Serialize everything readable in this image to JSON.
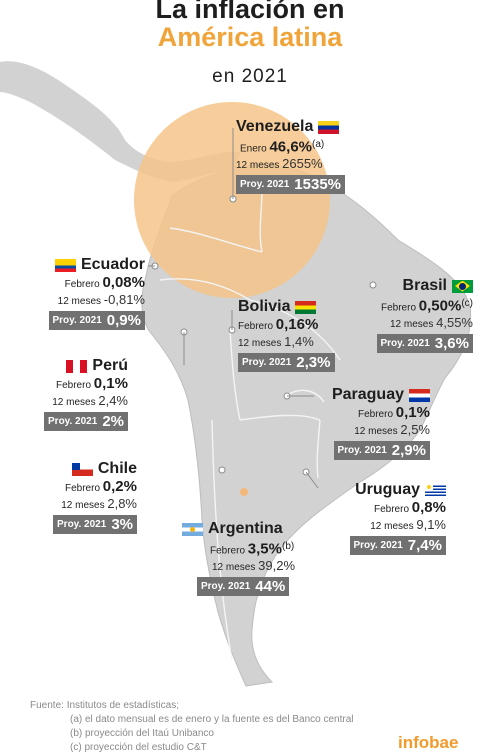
{
  "title": {
    "line1": "La inflación en",
    "line2": "América latina",
    "line3": "en 2021"
  },
  "countries": {
    "venezuela": {
      "name": "Venezuela",
      "monthly_label": "Enero",
      "monthly_value": "46,6%",
      "note": "(a)",
      "annual_label": "12 meses",
      "annual_value": "2655%",
      "proy_label": "Proy. 2021",
      "proy_value": "1535%"
    },
    "ecuador": {
      "name": "Ecuador",
      "monthly_label": "Febrero",
      "monthly_value": "0,08%",
      "annual_label": "12 meses",
      "annual_value": "-0,81%",
      "proy_label": "Proy. 2021",
      "proy_value": "0,9%"
    },
    "bolivia": {
      "name": "Bolivia",
      "monthly_label": "Febrero",
      "monthly_value": "0,16%",
      "annual_label": "12 meses",
      "annual_value": "1,4%",
      "proy_label": "Proy. 2021",
      "proy_value": "2,3%"
    },
    "brasil": {
      "name": "Brasil",
      "monthly_label": "Febrero",
      "monthly_value": "0,50%",
      "note": "(c)",
      "annual_label": "12 meses",
      "annual_value": "4,55%",
      "proy_label": "Proy. 2021",
      "proy_value": "3,6%"
    },
    "peru": {
      "name": "Perú",
      "monthly_label": "Febrero",
      "monthly_value": "0,1%",
      "annual_label": "12 meses",
      "annual_value": "2,4%",
      "proy_label": "Proy. 2021",
      "proy_value": "2%"
    },
    "paraguay": {
      "name": "Paraguay",
      "monthly_label": "Febrero",
      "monthly_value": "0,1%",
      "annual_label": "12 meses",
      "annual_value": "2,5%",
      "proy_label": "Proy. 2021",
      "proy_value": "2,9%"
    },
    "chile": {
      "name": "Chile",
      "monthly_label": "Febrero",
      "monthly_value": "0,2%",
      "annual_label": "12 meses",
      "annual_value": "2,8%",
      "proy_label": "Proy. 2021",
      "proy_value": "3%"
    },
    "uruguay": {
      "name": "Uruguay",
      "monthly_label": "Febrero",
      "monthly_value": "0,8%",
      "annual_label": "12 meses",
      "annual_value": "9,1%",
      "proy_label": "Proy. 2021",
      "proy_value": "7,4%"
    },
    "argentina": {
      "name": "Argentina",
      "monthly_label": "Febrero",
      "monthly_value": "3,5%",
      "note": "(b)",
      "annual_label": "12 meses",
      "annual_value": "39,2%",
      "proy_label": "Proy. 2021",
      "proy_value": "44%"
    }
  },
  "footer": {
    "source": "Fuente: Institutos de estadísticas;",
    "note_a": "(a) el dato mensual es de enero y la fuente es del Banco central",
    "note_b": "(b) proyección del Itaú Unibanco",
    "note_c": "(c) proyección del estudio C&T"
  },
  "logo": "infobae",
  "colors": {
    "highlight": "#f5c48a",
    "accent": "#f0a43a",
    "land": "#d2d2d2",
    "proy_box": "#717171"
  }
}
